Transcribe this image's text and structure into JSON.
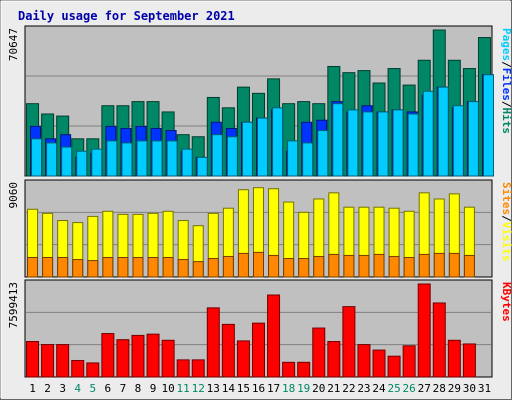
{
  "chart_data": {
    "type": "bar",
    "title": "Daily usage for September 2021",
    "days": [
      "1",
      "2",
      "3",
      "4",
      "5",
      "6",
      "7",
      "8",
      "9",
      "10",
      "11",
      "12",
      "13",
      "14",
      "15",
      "16",
      "17",
      "18",
      "19",
      "20",
      "21",
      "22",
      "23",
      "24",
      "25",
      "26",
      "27",
      "28",
      "29",
      "30",
      "31"
    ],
    "weekend_days": [
      "4",
      "5",
      "11",
      "12",
      "18",
      "19",
      "25",
      "26"
    ],
    "panels": [
      {
        "id": "hits",
        "max_label": "70647",
        "ymax": 70647,
        "side_labels": [
          {
            "text": "Pages",
            "color": "#00ccff"
          },
          {
            "text": "Files",
            "color": "#0033ff"
          },
          {
            "text": "Hits",
            "color": "#008866"
          }
        ],
        "series": [
          {
            "name": "Hits",
            "color": "#008866",
            "values": [
              35000,
              30000,
              29000,
              18000,
              18000,
              34000,
              34000,
              36000,
              36000,
              31000,
              20000,
              19000,
              38000,
              33000,
              43000,
              40000,
              47000,
              35000,
              36000,
              35000,
              53000,
              50000,
              51000,
              45000,
              52000,
              44000,
              56000,
              70647,
              56000,
              52000,
              67000
            ]
          },
          {
            "name": "Files",
            "color": "#0033ff",
            "values": [
              24000,
              18000,
              20000,
              9000,
              11000,
              24000,
              23000,
              24000,
              23000,
              22000,
              12000,
              9000,
              26000,
              23000,
              26000,
              28000,
              32000,
              12000,
              26000,
              27000,
              36000,
              31000,
              34000,
              31000,
              32000,
              31000,
              39000,
              43000,
              33000,
              36000,
              49000
            ]
          },
          {
            "name": "Pages",
            "color": "#00ccff",
            "values": [
              18000,
              16000,
              14000,
              12000,
              13000,
              17000,
              16000,
              17000,
              17000,
              17000,
              13000,
              9000,
              20000,
              19000,
              26000,
              28000,
              33000,
              17000,
              16000,
              22000,
              35000,
              32000,
              31000,
              31000,
              32000,
              30000,
              41000,
              43000,
              34000,
              36000,
              49000
            ]
          }
        ]
      },
      {
        "id": "visits",
        "max_label": "9060",
        "ymax": 9060,
        "side_labels": [
          {
            "text": "Sites",
            "color": "#ff8800"
          },
          {
            "text": "Visits",
            "color": "#ffff00"
          }
        ],
        "series": [
          {
            "name": "Visits",
            "color": "#ffff00",
            "values": [
              6600,
              6200,
              5500,
              5300,
              5900,
              6400,
              6100,
              6100,
              6200,
              6400,
              5500,
              5000,
              6200,
              6700,
              8500,
              8700,
              8600,
              7300,
              6300,
              7600,
              8200,
              6800,
              6800,
              6800,
              6700,
              6400,
              8200,
              7600,
              8100,
              6800,
              0
            ]
          },
          {
            "name": "Sites",
            "color": "#ff8800",
            "values": [
              1900,
              1900,
              1900,
              1700,
              1600,
              1900,
              1900,
              1900,
              1900,
              1900,
              1700,
              1500,
              1800,
              2000,
              2300,
              2400,
              2100,
              1800,
              1800,
              2000,
              2200,
              2100,
              2100,
              2200,
              2000,
              1900,
              2200,
              2300,
              2300,
              2100,
              0
            ]
          }
        ]
      },
      {
        "id": "kbytes",
        "max_label": "7599413",
        "ymax": 7599413,
        "side_labels": [
          {
            "text": "KBytes",
            "color": "#ff0000"
          }
        ],
        "series": [
          {
            "name": "KBytes",
            "color": "#ff0000",
            "values": [
              2900000,
              2650000,
              2650000,
              1350000,
              1150000,
              3550000,
              3050000,
              3400000,
              3500000,
              3000000,
              1400000,
              1400000,
              5650000,
              4300000,
              2950000,
              4400000,
              6700000,
              1200000,
              1200000,
              4000000,
              2900000,
              5750000,
              2650000,
              2200000,
              1700000,
              2550000,
              7599413,
              6050000,
              3000000,
              2700000,
              0
            ]
          }
        ]
      }
    ]
  }
}
